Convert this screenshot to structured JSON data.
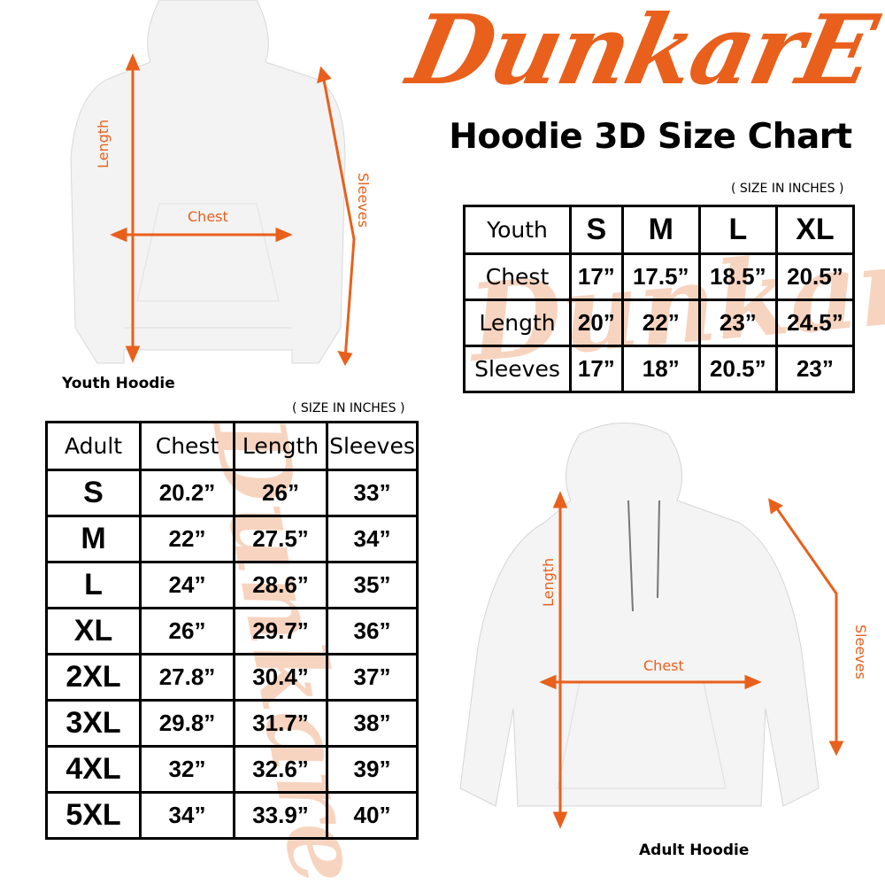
{
  "brand": {
    "logo_text": "DunkarE",
    "color": "#e8601c"
  },
  "title": "Hoodie 3D Size Chart",
  "youth": {
    "note": "( SIZE IN INCHES )",
    "caption": "Youth Hoodie",
    "annotations": {
      "length": "Length",
      "chest": "Chest",
      "sleeves": "Sleeves"
    },
    "header": [
      "Youth",
      "S",
      "M",
      "L",
      "XL"
    ],
    "rows": [
      [
        "Chest",
        "17”",
        "17.5”",
        "18.5”",
        "20.5”"
      ],
      [
        "Length",
        "20”",
        "22”",
        "23”",
        "24.5”"
      ],
      [
        "Sleeves",
        "17”",
        "18”",
        "20.5”",
        "23”"
      ]
    ]
  },
  "adult": {
    "note": "( SIZE IN INCHES )",
    "caption": "Adult Hoodie",
    "annotations": {
      "length": "Length",
      "chest": "Chest",
      "sleeves": "Sleeves"
    },
    "header": [
      "Adult",
      "Chest",
      "Length",
      "Sleeves"
    ],
    "rows": [
      [
        "S",
        "20.2”",
        "26”",
        "33”"
      ],
      [
        "M",
        "22”",
        "27.5”",
        "34”"
      ],
      [
        "L",
        "24”",
        "28.6”",
        "35”"
      ],
      [
        "XL",
        "26”",
        "29.7”",
        "36”"
      ],
      [
        "2XL",
        "27.8”",
        "30.4”",
        "37”"
      ],
      [
        "3XL",
        "29.8”",
        "31.7”",
        "38”"
      ],
      [
        "4XL",
        "32”",
        "32.6”",
        "39”"
      ],
      [
        "5XL",
        "34”",
        "33.9”",
        "40”"
      ]
    ]
  }
}
